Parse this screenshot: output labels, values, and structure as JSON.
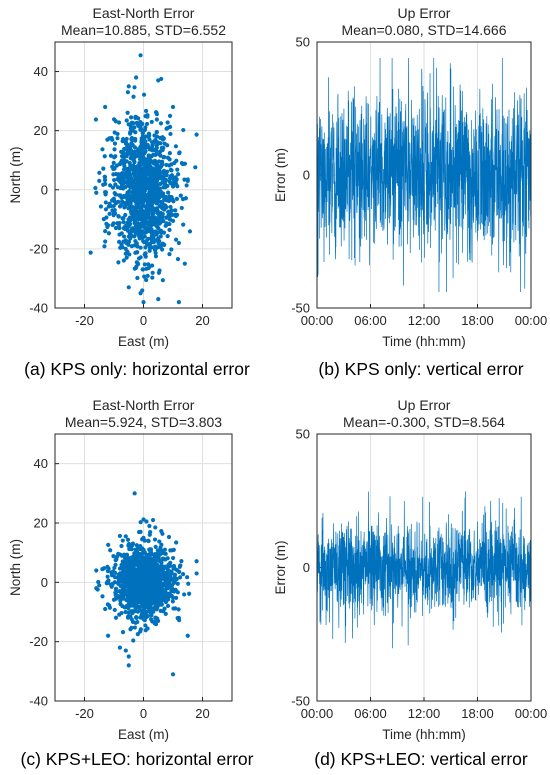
{
  "colors": {
    "series": "#0072BD",
    "grid": "#dfdfdf",
    "axis": "#262626"
  },
  "chart_data": [
    {
      "id": "a",
      "type": "scatter",
      "title": "East-North Error",
      "subtitle": "Mean=10.885, STD=6.552",
      "xlabel": "East (m)",
      "ylabel": "North (m)",
      "xlim": [
        -30,
        30
      ],
      "ylim": [
        -40,
        50
      ],
      "xticks": [
        -20,
        0,
        20
      ],
      "yticks": [
        -40,
        -20,
        0,
        20,
        40
      ],
      "grid": true,
      "caption": "(a) KPS only: horizontal error",
      "spread": {
        "east_std": 5.5,
        "north_std": 11.5,
        "points": 1200
      },
      "points": [
        [
          -1,
          45.5
        ],
        [
          5,
          37
        ],
        [
          6,
          37.5
        ],
        [
          -5,
          35
        ],
        [
          10,
          28
        ],
        [
          9,
          25
        ],
        [
          -13,
          28
        ],
        [
          15,
          3.5
        ],
        [
          15,
          3
        ],
        [
          12,
          -18
        ],
        [
          14,
          -25
        ],
        [
          -15,
          3
        ],
        [
          -13,
          2
        ],
        [
          -16,
          -1
        ],
        [
          -13,
          -14
        ],
        [
          -12,
          -12
        ],
        [
          5,
          -37
        ],
        [
          0,
          -38
        ],
        [
          -1,
          -35
        ],
        [
          12,
          -38
        ],
        [
          -5,
          -33
        ]
      ]
    },
    {
      "id": "b",
      "type": "line",
      "title": "Up Error",
      "subtitle": "Mean=0.080, STD=14.666",
      "xlabel": "Time (hh:mm)",
      "ylabel": "Error (m)",
      "xlim": [
        "00:00",
        "24:00"
      ],
      "xticklabels": [
        "00:00",
        "06:00",
        "12:00",
        "18:00",
        "00:00"
      ],
      "ylim": [
        -50,
        50
      ],
      "yticks": [
        -50,
        0,
        50
      ],
      "grid": true,
      "caption": "(b) KPS only: vertical error",
      "spread": {
        "std": 14.666,
        "samples": 1440
      }
    },
    {
      "id": "c",
      "type": "scatter",
      "title": "East-North Error",
      "subtitle": "Mean=5.924, STD=3.803",
      "xlabel": "East (m)",
      "ylabel": "North (m)",
      "xlim": [
        -30,
        30
      ],
      "ylim": [
        -40,
        50
      ],
      "xticks": [
        -20,
        0,
        20
      ],
      "yticks": [
        -40,
        -20,
        0,
        20,
        40
      ],
      "grid": true,
      "caption": "(c) KPS+LEO: horizontal error",
      "spread": {
        "east_std": 5.0,
        "north_std": 5.8,
        "points": 1200
      },
      "points": [
        [
          -3,
          30
        ],
        [
          1,
          20.5
        ],
        [
          2,
          19
        ],
        [
          4,
          18.5
        ],
        [
          -1,
          17
        ],
        [
          0,
          15
        ],
        [
          -16,
          4
        ],
        [
          -16,
          -2
        ],
        [
          -15,
          -1
        ],
        [
          -13,
          -9
        ],
        [
          -12,
          -18
        ],
        [
          15,
          -18
        ],
        [
          -8,
          -22
        ],
        [
          -6,
          -23
        ],
        [
          -5,
          -25
        ],
        [
          -5,
          -28
        ],
        [
          10,
          -31
        ],
        [
          12,
          -12
        ],
        [
          18,
          3
        ]
      ]
    },
    {
      "id": "d",
      "type": "line",
      "title": "Up Error",
      "subtitle": "Mean=-0.300, STD=8.564",
      "xlabel": "Time (hh:mm)",
      "ylabel": "Error (m)",
      "xlim": [
        "00:00",
        "24:00"
      ],
      "xticklabels": [
        "00:00",
        "06:00",
        "12:00",
        "18:00",
        "00:00"
      ],
      "ylim": [
        -50,
        50
      ],
      "yticks": [
        -50,
        0,
        50
      ],
      "grid": true,
      "caption": "(d) KPS+LEO: vertical error",
      "spread": {
        "std": 8.564,
        "samples": 1440
      }
    }
  ]
}
